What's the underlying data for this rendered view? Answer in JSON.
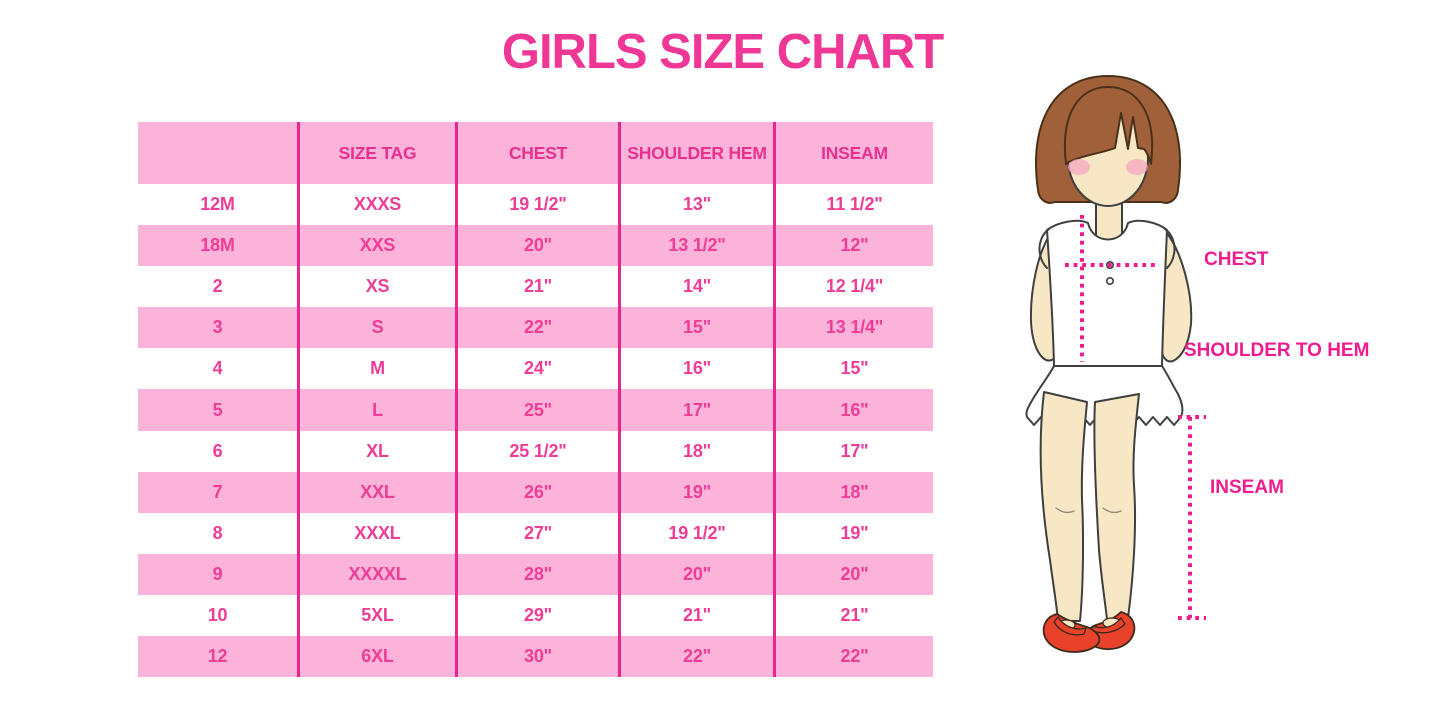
{
  "title": "GIRLS SIZE CHART",
  "colors": {
    "title_pink": "#EF3795",
    "row_pink": "#FBB3D9",
    "grid_line": "#E9258E",
    "text_pink": "#EE3D96",
    "header_text": "#E9308F",
    "label_pink": "#EE1D8F",
    "hair_brown": "#A0613A",
    "skin": "#F8E7C5",
    "shoe_red": "#E8432A"
  },
  "table": {
    "columns": [
      "",
      "SIZE TAG",
      "CHEST",
      "SHOULDER HEM",
      "INSEAM"
    ],
    "rows": [
      [
        "12M",
        "XXXS",
        "19 1/2\"",
        "13\"",
        "11 1/2\""
      ],
      [
        "18M",
        "XXS",
        "20\"",
        "13 1/2\"",
        "12\""
      ],
      [
        "2",
        "XS",
        "21\"",
        "14\"",
        "12 1/4\""
      ],
      [
        "3",
        "S",
        "22\"",
        "15\"",
        "13 1/4\""
      ],
      [
        "4",
        "M",
        "24\"",
        "16\"",
        "15\""
      ],
      [
        "5",
        "L",
        "25\"",
        "17\"",
        "16\""
      ],
      [
        "6",
        "XL",
        "25 1/2\"",
        "18\"",
        "17\""
      ],
      [
        "7",
        "XXL",
        "26\"",
        "19\"",
        "18\""
      ],
      [
        "8",
        "XXXL",
        "27\"",
        "19 1/2\"",
        "19\""
      ],
      [
        "9",
        "XXXXL",
        "28\"",
        "20\"",
        "20\""
      ],
      [
        "10",
        "5XL",
        "29\"",
        "21\"",
        "21\""
      ],
      [
        "12",
        "6XL",
        "30\"",
        "22\"",
        "22\""
      ]
    ]
  },
  "figure": {
    "labels": {
      "chest": "CHEST",
      "shoulder_to_hem": "SHOULDER TO HEM",
      "inseam": "INSEAM"
    }
  }
}
